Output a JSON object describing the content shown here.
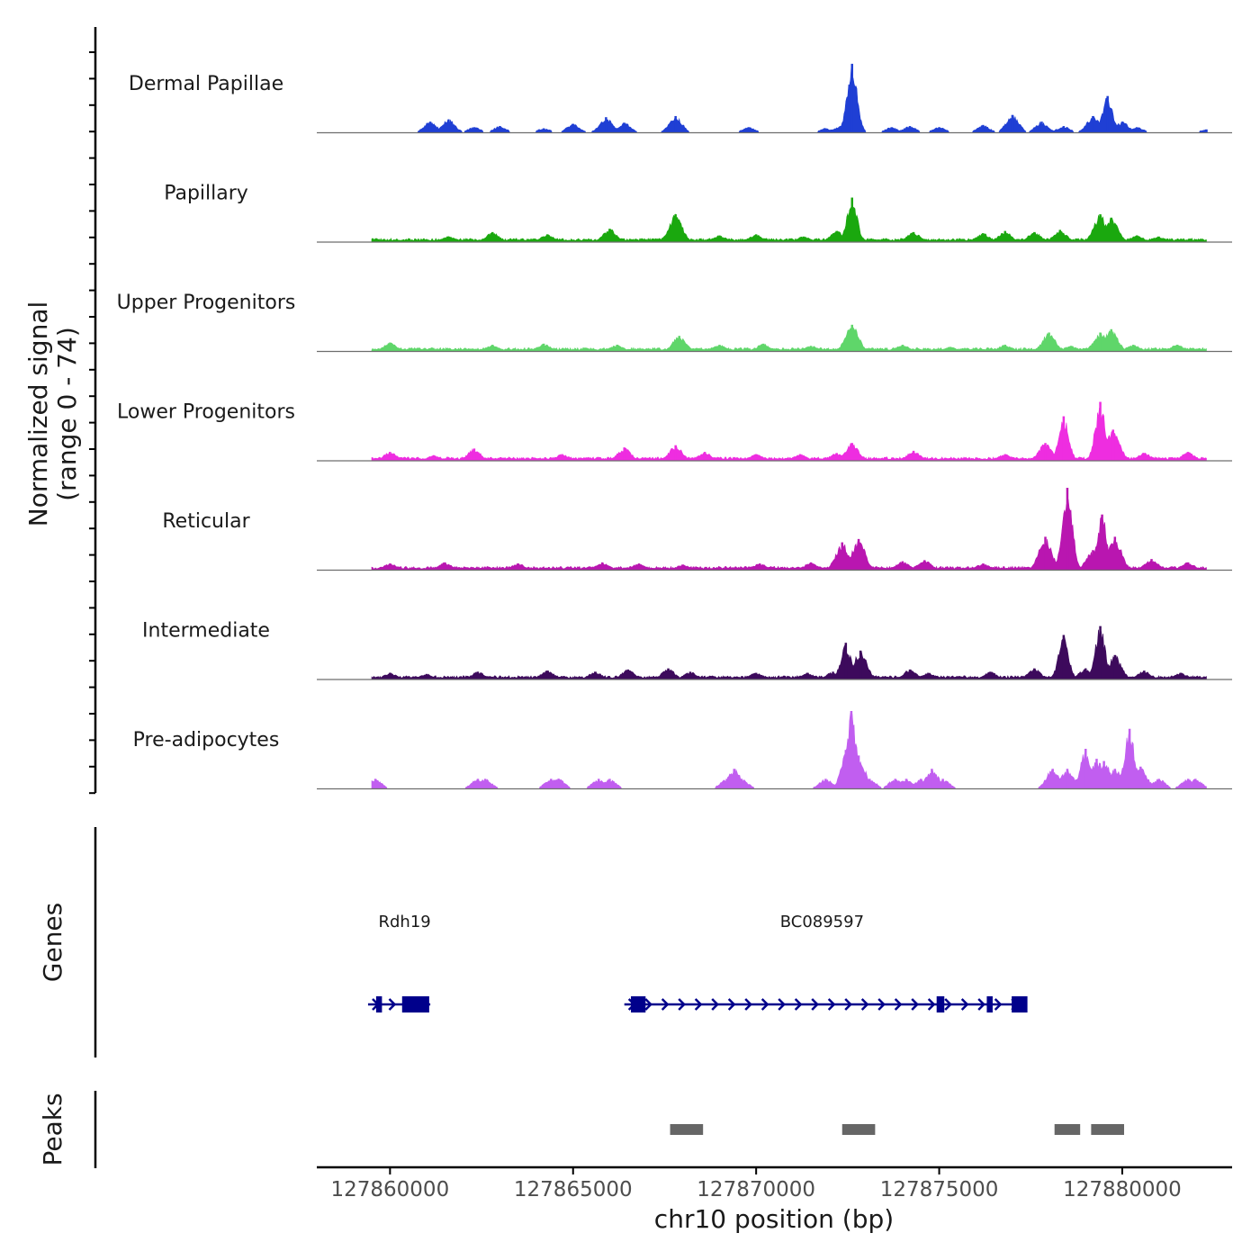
{
  "chart_data": {
    "type": "area",
    "title": "",
    "region": "chr10",
    "xlabel": "chr10 position (bp)",
    "xlim": [
      127858000,
      127883000
    ],
    "x_ticks": [
      127860000,
      127865000,
      127870000,
      127875000,
      127880000
    ],
    "x_tick_labels": [
      "127860000",
      "127865000",
      "127870000",
      "127875000",
      "127880000"
    ],
    "ylabel": "Normalized signal",
    "ylabel_range": "(range 0 - 74)",
    "ylim": [
      0,
      74
    ],
    "tracks": [
      {
        "name": "Dermal Papillae",
        "color": "#1f3fd4",
        "style": "sparse",
        "peaks": [
          [
            127861100,
            10
          ],
          [
            127861600,
            12
          ],
          [
            127862300,
            5
          ],
          [
            127863000,
            6
          ],
          [
            127864200,
            4
          ],
          [
            127865000,
            8
          ],
          [
            127865900,
            14
          ],
          [
            127866400,
            9
          ],
          [
            127867800,
            15
          ],
          [
            127869800,
            5
          ],
          [
            127871900,
            4
          ],
          [
            127872300,
            6
          ],
          [
            127872620,
            62
          ],
          [
            127873700,
            5
          ],
          [
            127874200,
            6
          ],
          [
            127875000,
            5
          ],
          [
            127876200,
            7
          ],
          [
            127877000,
            16
          ],
          [
            127877800,
            10
          ],
          [
            127878400,
            6
          ],
          [
            127879200,
            15
          ],
          [
            127879600,
            33
          ],
          [
            127880000,
            10
          ],
          [
            127880400,
            5
          ],
          [
            127882300,
            3
          ]
        ]
      },
      {
        "name": "Papillary",
        "color": "#1aa80e",
        "style": "dense",
        "peaks": [
          [
            127861600,
            5
          ],
          [
            127862800,
            9
          ],
          [
            127864300,
            7
          ],
          [
            127866000,
            12
          ],
          [
            127867800,
            25
          ],
          [
            127869000,
            6
          ],
          [
            127870000,
            7
          ],
          [
            127871300,
            5
          ],
          [
            127872200,
            10
          ],
          [
            127872620,
            40
          ],
          [
            127874300,
            9
          ],
          [
            127876200,
            8
          ],
          [
            127876800,
            10
          ],
          [
            127877600,
            9
          ],
          [
            127878300,
            11
          ],
          [
            127879400,
            25
          ],
          [
            127879700,
            22
          ],
          [
            127880400,
            6
          ],
          [
            127881000,
            5
          ]
        ]
      },
      {
        "name": "Upper Progenitors",
        "color": "#5fd66a",
        "style": "dense",
        "peaks": [
          [
            127860000,
            8
          ],
          [
            127862800,
            6
          ],
          [
            127864200,
            7
          ],
          [
            127866200,
            6
          ],
          [
            127867900,
            14
          ],
          [
            127869000,
            6
          ],
          [
            127870200,
            7
          ],
          [
            127871500,
            5
          ],
          [
            127872620,
            24
          ],
          [
            127874000,
            6
          ],
          [
            127875300,
            4
          ],
          [
            127876800,
            6
          ],
          [
            127878000,
            17
          ],
          [
            127878600,
            5
          ],
          [
            127879400,
            17
          ],
          [
            127879700,
            20
          ],
          [
            127880300,
            6
          ],
          [
            127881500,
            6
          ]
        ]
      },
      {
        "name": "Lower Progenitors",
        "color": "#ee2de0",
        "style": "dense",
        "peaks": [
          [
            127860000,
            8
          ],
          [
            127861200,
            5
          ],
          [
            127862300,
            11
          ],
          [
            127864700,
            6
          ],
          [
            127866400,
            12
          ],
          [
            127867800,
            14
          ],
          [
            127868600,
            8
          ],
          [
            127870000,
            6
          ],
          [
            127871200,
            6
          ],
          [
            127872200,
            7
          ],
          [
            127872620,
            16
          ],
          [
            127874300,
            9
          ],
          [
            127876800,
            6
          ],
          [
            127877900,
            16
          ],
          [
            127878400,
            40
          ],
          [
            127879400,
            53
          ],
          [
            127879750,
            28
          ],
          [
            127880600,
            7
          ],
          [
            127881800,
            8
          ]
        ]
      },
      {
        "name": "Reticular",
        "color": "#b916b0",
        "style": "dense",
        "peaks": [
          [
            127860000,
            6
          ],
          [
            127861500,
            7
          ],
          [
            127863500,
            6
          ],
          [
            127865800,
            7
          ],
          [
            127866800,
            6
          ],
          [
            127868000,
            5
          ],
          [
            127870100,
            6
          ],
          [
            127871500,
            7
          ],
          [
            127872350,
            25
          ],
          [
            127872800,
            28
          ],
          [
            127874000,
            8
          ],
          [
            127874600,
            9
          ],
          [
            127876200,
            6
          ],
          [
            127877900,
            30
          ],
          [
            127878500,
            74
          ],
          [
            127879200,
            18
          ],
          [
            127879450,
            50
          ],
          [
            127879800,
            30
          ],
          [
            127880800,
            10
          ],
          [
            127881800,
            7
          ]
        ]
      },
      {
        "name": "Intermediate",
        "color": "#3d0a5c",
        "style": "dense",
        "peaks": [
          [
            127860000,
            6
          ],
          [
            127861000,
            5
          ],
          [
            127862400,
            7
          ],
          [
            127864300,
            8
          ],
          [
            127865600,
            7
          ],
          [
            127866500,
            9
          ],
          [
            127867600,
            10
          ],
          [
            127868200,
            7
          ],
          [
            127870000,
            6
          ],
          [
            127871400,
            6
          ],
          [
            127872100,
            7
          ],
          [
            127872450,
            33
          ],
          [
            127872850,
            26
          ],
          [
            127874200,
            9
          ],
          [
            127874700,
            6
          ],
          [
            127876400,
            7
          ],
          [
            127877600,
            10
          ],
          [
            127878400,
            40
          ],
          [
            127879000,
            10
          ],
          [
            127879400,
            48
          ],
          [
            127879800,
            22
          ],
          [
            127880600,
            8
          ],
          [
            127881600,
            6
          ]
        ]
      },
      {
        "name": "Pre-adipocytes",
        "color": "#c15ef0",
        "style": "sparse",
        "peaks": [
          [
            127859600,
            9
          ],
          [
            127862400,
            9
          ],
          [
            127862600,
            9
          ],
          [
            127864400,
            9
          ],
          [
            127864600,
            9
          ],
          [
            127865700,
            9
          ],
          [
            127866000,
            9
          ],
          [
            127869200,
            9
          ],
          [
            127869400,
            18
          ],
          [
            127869600,
            9
          ],
          [
            127871900,
            9
          ],
          [
            127872450,
            35
          ],
          [
            127872600,
            70
          ],
          [
            127872800,
            30
          ],
          [
            127873100,
            9
          ],
          [
            127873800,
            9
          ],
          [
            127874100,
            9
          ],
          [
            127874500,
            9
          ],
          [
            127874800,
            18
          ],
          [
            127875100,
            9
          ],
          [
            127878100,
            18
          ],
          [
            127878500,
            18
          ],
          [
            127878800,
            9
          ],
          [
            127879000,
            36
          ],
          [
            127879300,
            27
          ],
          [
            127879500,
            25
          ],
          [
            127879800,
            18
          ],
          [
            127880200,
            54
          ],
          [
            127880500,
            20
          ],
          [
            127881000,
            9
          ],
          [
            127881800,
            9
          ],
          [
            127882000,
            9
          ]
        ]
      }
    ],
    "genes_label": "Genes",
    "genes": [
      {
        "name": "Rdh19",
        "start": 127859400,
        "end": 127861100,
        "label_pos": 127860400,
        "exons": [
          [
            127859620,
            127859780
          ],
          [
            127860330,
            127861070
          ]
        ]
      },
      {
        "name": "BC089597",
        "start": 127866400,
        "end": 127877300,
        "label_pos": 127871800,
        "exons": [
          [
            127866580,
            127866980
          ],
          [
            127874930,
            127875140
          ],
          [
            127876300,
            127876460
          ],
          [
            127876980,
            127877410
          ]
        ]
      }
    ],
    "peaks_label": "Peaks",
    "peak_regions": [
      [
        127867650,
        127868550
      ],
      [
        127872350,
        127873250
      ],
      [
        127878150,
        127878850
      ],
      [
        127879150,
        127880050
      ]
    ]
  }
}
